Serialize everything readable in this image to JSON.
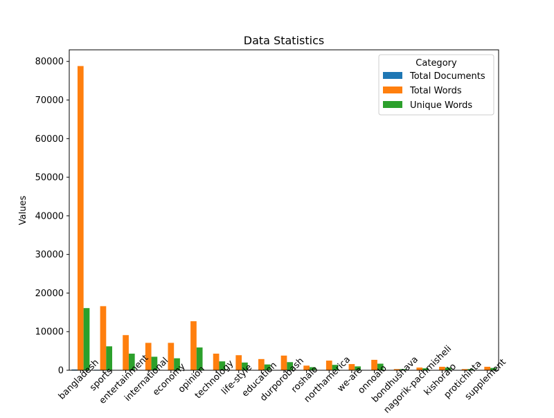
{
  "chart_data": {
    "type": "bar",
    "title": "Data Statistics",
    "xlabel": "",
    "ylabel": "Values",
    "ylim": [
      0,
      83000
    ],
    "yticks": [
      0,
      10000,
      20000,
      30000,
      40000,
      50000,
      60000,
      70000,
      80000
    ],
    "grid": false,
    "legend": {
      "title": "Category",
      "placement": "top-right"
    },
    "categories": [
      "bangladesh",
      "sports",
      "entertainment",
      "international",
      "economy",
      "opinion",
      "technology",
      "life-style",
      "education",
      "durporobash",
      "roshalo",
      "northamerica",
      "we-are",
      "onnoalo",
      "bondhushava",
      "nagorik-pachmisheli",
      "kishoralo",
      "protichinta",
      "supplement"
    ],
    "series": [
      {
        "name": "Total Documents",
        "color": "#1f77b4",
        "values": [
          200,
          130,
          30,
          20,
          20,
          30,
          30,
          20,
          20,
          20,
          10,
          10,
          10,
          10,
          10,
          10,
          10,
          10,
          10
        ]
      },
      {
        "name": "Total Words",
        "color": "#ff7f0e",
        "values": [
          78800,
          16600,
          9100,
          7100,
          7100,
          12700,
          4300,
          3900,
          2900,
          3800,
          1200,
          2500,
          1600,
          2700,
          300,
          700,
          900,
          300,
          900
        ]
      },
      {
        "name": "Unique Words",
        "color": "#2ca02c",
        "values": [
          16100,
          6200,
          4300,
          3500,
          3100,
          5900,
          2300,
          2000,
          1500,
          2100,
          800,
          1400,
          1000,
          1700,
          300,
          500,
          700,
          300,
          600
        ]
      }
    ]
  }
}
